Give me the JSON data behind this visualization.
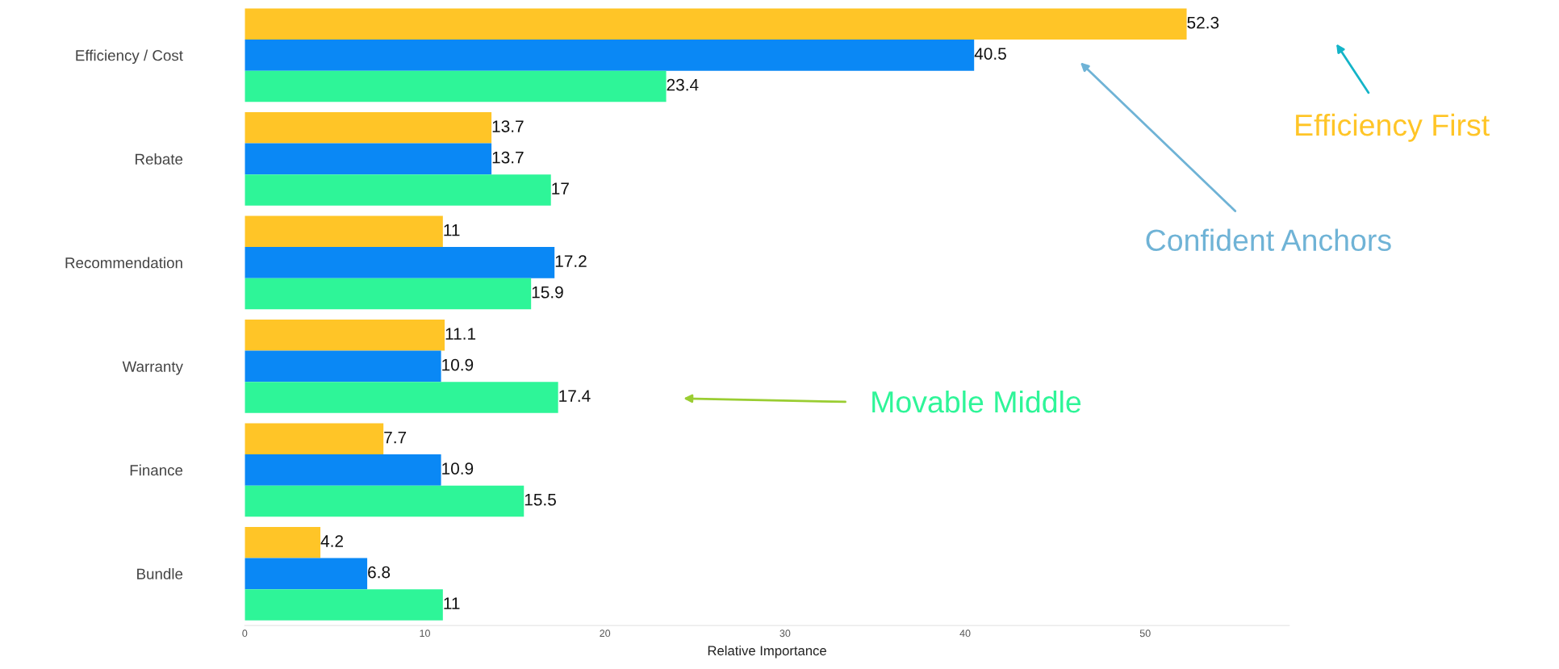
{
  "chart_data": {
    "type": "bar",
    "orientation": "horizontal",
    "xlabel": "Relative Importance",
    "categories": [
      "Efficiency / Cost",
      "Rebate",
      "Recommendation",
      "Warranty",
      "Finance",
      "Bundle"
    ],
    "series": [
      {
        "color": "#ffc527",
        "values": [
          52.3,
          13.7,
          11,
          11.1,
          7.7,
          4.2
        ]
      },
      {
        "color": "#0a88f5",
        "values": [
          40.5,
          13.7,
          17.2,
          10.9,
          10.9,
          6.8
        ]
      },
      {
        "color": "#2ef598",
        "values": [
          23.4,
          17,
          15.9,
          17.4,
          15.5,
          11
        ]
      }
    ],
    "data_labels": true,
    "xlim": [
      0,
      58
    ],
    "xticks": [
      0,
      10,
      20,
      30,
      40,
      50
    ],
    "grid": false,
    "annotations": [
      "Efficiency First",
      "Confident Anchors",
      "Movable Middle"
    ]
  }
}
